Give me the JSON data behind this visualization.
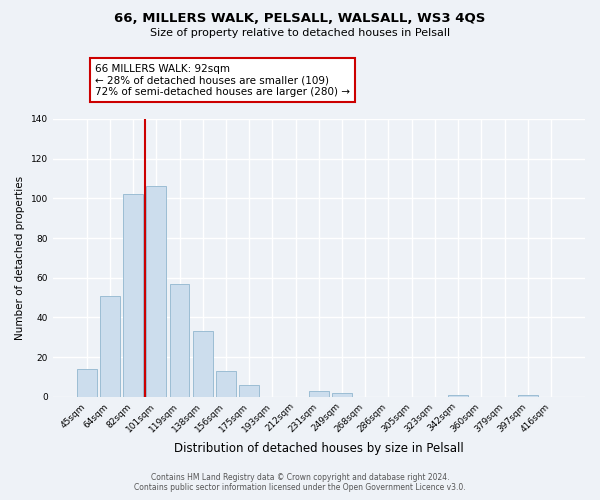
{
  "title": "66, MILLERS WALK, PELSALL, WALSALL, WS3 4QS",
  "subtitle": "Size of property relative to detached houses in Pelsall",
  "xlabel": "Distribution of detached houses by size in Pelsall",
  "ylabel": "Number of detached properties",
  "bar_labels": [
    "45sqm",
    "64sqm",
    "82sqm",
    "101sqm",
    "119sqm",
    "138sqm",
    "156sqm",
    "175sqm",
    "193sqm",
    "212sqm",
    "231sqm",
    "249sqm",
    "268sqm",
    "286sqm",
    "305sqm",
    "323sqm",
    "342sqm",
    "360sqm",
    "379sqm",
    "397sqm",
    "416sqm"
  ],
  "bar_values": [
    14,
    51,
    102,
    106,
    57,
    33,
    13,
    6,
    0,
    0,
    3,
    2,
    0,
    0,
    0,
    0,
    1,
    0,
    0,
    1,
    0
  ],
  "bar_color": "#ccdded",
  "bar_edge_color": "#9bbdd4",
  "vline_color": "#cc0000",
  "vline_position": 2.5,
  "ylim": [
    0,
    140
  ],
  "yticks": [
    0,
    20,
    40,
    60,
    80,
    100,
    120,
    140
  ],
  "annotation_text": "66 MILLERS WALK: 92sqm\n← 28% of detached houses are smaller (109)\n72% of semi-detached houses are larger (280) →",
  "annotation_box_color": "#ffffff",
  "annotation_box_edge": "#cc0000",
  "footer_line1": "Contains HM Land Registry data © Crown copyright and database right 2024.",
  "footer_line2": "Contains public sector information licensed under the Open Government Licence v3.0.",
  "background_color": "#eef2f7",
  "grid_color": "#ffffff",
  "plot_bg_color": "#eef2f7"
}
